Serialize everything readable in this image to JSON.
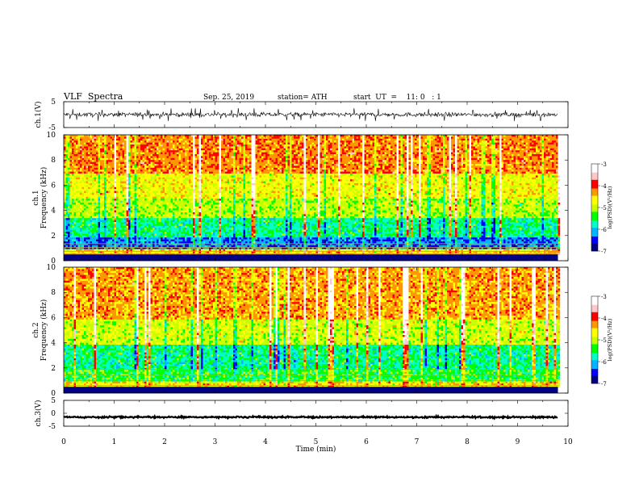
{
  "header": {
    "title": "VLF  Spectra",
    "date": "Sep. 25, 2019",
    "station": "station= ATH",
    "start": "start  UT  =    11: 0   : 1"
  },
  "colors": {
    "colormap": [
      "#000080",
      "#0000ff",
      "#00b4ff",
      "#00ffc8",
      "#00ff00",
      "#c8ff00",
      "#ffff00",
      "#ff9600",
      "#ff0000",
      "#ffc8c8",
      "#ffffff"
    ],
    "trace": "#000000",
    "band_lines": "#d79632"
  },
  "chart_data": [
    {
      "type": "line",
      "panel": "ch1-waveform",
      "ylabel": "ch.1(V)",
      "ylim": [
        -5,
        5
      ],
      "yticks": [
        5,
        -5
      ],
      "xlim": [
        0,
        10
      ],
      "x_data_end": 9.8,
      "series": [
        {
          "baseline": 0,
          "typical_amplitude": 1.5,
          "spike_max": 2.5
        }
      ]
    },
    {
      "type": "heatmap",
      "panel": "ch1-spectrogram",
      "ylabel": "ch.1\nFrequency  (kHz)",
      "ylim": [
        0,
        10
      ],
      "yticks": [
        0,
        2,
        4,
        6,
        8,
        10
      ],
      "xlim": [
        0,
        10
      ],
      "x_data_end": 9.8,
      "colorbar": {
        "label": "log(PSD)(V²/Hz)",
        "range": [
          -7,
          -3
        ],
        "ticks": [
          -3,
          -4,
          -5,
          -6,
          -7
        ]
      },
      "typical_log_psd": [
        {
          "freq_khz": [
            0.5,
            1.0
          ],
          "value": -4.5
        },
        {
          "freq_khz": [
            1.0,
            2.0
          ],
          "value": -6.2
        },
        {
          "freq_khz": [
            2.0,
            3.5
          ],
          "value": -5.6
        },
        {
          "freq_khz": [
            3.5,
            5.0
          ],
          "value": -5.0
        },
        {
          "freq_khz": [
            5.0,
            7.0
          ],
          "value": -4.7
        },
        {
          "freq_khz": [
            7.0,
            10.0
          ],
          "value": -4.2
        }
      ]
    },
    {
      "type": "heatmap",
      "panel": "ch2-spectrogram",
      "ylabel": "ch.2\nFrequency  (kHz)",
      "ylim": [
        0,
        10
      ],
      "yticks": [
        0,
        2,
        4,
        6,
        8,
        10
      ],
      "xlim": [
        0,
        10
      ],
      "x_data_end": 9.8,
      "colorbar": {
        "label": "log(PSD)(V²/Hz)",
        "range": [
          -7,
          -3
        ],
        "ticks": [
          -3,
          -4,
          -5,
          -6,
          -7
        ]
      },
      "typical_log_psd": [
        {
          "freq_khz": [
            0.5,
            1.0
          ],
          "value": -4.6
        },
        {
          "freq_khz": [
            1.0,
            2.0
          ],
          "value": -5.4
        },
        {
          "freq_khz": [
            2.0,
            4.0
          ],
          "value": -5.6
        },
        {
          "freq_khz": [
            4.0,
            6.0
          ],
          "value": -4.9
        },
        {
          "freq_khz": [
            6.0,
            10.0
          ],
          "value": -4.3
        }
      ]
    },
    {
      "type": "line",
      "panel": "ch3-waveform",
      "ylabel": "ch.3(V)",
      "ylim": [
        -5,
        5
      ],
      "yticks": [
        5,
        0,
        -5
      ],
      "xlim": [
        0,
        10
      ],
      "x_data_end": 9.8,
      "xlabel": "Time  (min)",
      "xticks": [
        0,
        1,
        2,
        3,
        4,
        5,
        6,
        7,
        8,
        9,
        10
      ],
      "series": [
        {
          "baseline": -1.5,
          "typical_amplitude": 0.3
        }
      ]
    }
  ]
}
